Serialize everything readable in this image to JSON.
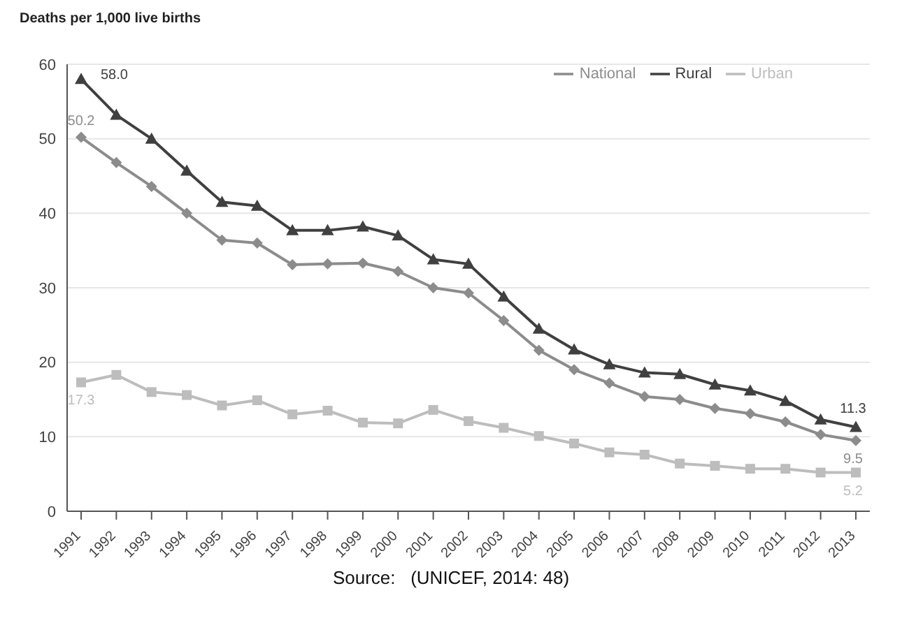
{
  "chart_data": {
    "type": "line",
    "ylabel": "Deaths per 1,000 live births",
    "categories": [
      "1991",
      "1992",
      "1993",
      "1994",
      "1995",
      "1996",
      "1997",
      "1998",
      "1999",
      "2000",
      "2001",
      "2002",
      "2003",
      "2004",
      "2005",
      "2006",
      "2007",
      "2008",
      "2009",
      "2010",
      "2011",
      "2012",
      "2013"
    ],
    "series": [
      {
        "name": "National",
        "color": "#8c8c8c",
        "marker": "diamond",
        "values": [
          50.2,
          46.8,
          43.6,
          40.0,
          36.4,
          36.0,
          33.1,
          33.2,
          33.3,
          32.2,
          30.0,
          29.3,
          25.6,
          21.6,
          19.0,
          17.2,
          15.4,
          15.0,
          13.8,
          13.1,
          12.0,
          10.3,
          9.5
        ],
        "value_labels": [
          "50.2",
          null,
          null,
          null,
          null,
          null,
          null,
          null,
          null,
          null,
          null,
          null,
          null,
          null,
          null,
          null,
          null,
          null,
          null,
          null,
          null,
          null,
          "9.5"
        ]
      },
      {
        "name": "Urban",
        "color": "#bdbdbd",
        "marker": "square",
        "values": [
          17.3,
          18.3,
          16.0,
          15.6,
          14.2,
          14.9,
          13.0,
          13.5,
          11.9,
          11.8,
          13.6,
          12.1,
          11.2,
          10.1,
          9.1,
          7.9,
          7.6,
          6.4,
          6.1,
          5.7,
          5.7,
          5.2,
          5.2
        ],
        "value_labels": [
          "17.3",
          null,
          null,
          null,
          null,
          null,
          null,
          null,
          null,
          null,
          null,
          null,
          null,
          null,
          null,
          null,
          null,
          null,
          null,
          null,
          null,
          null,
          "5.2"
        ]
      },
      {
        "name": "Rural",
        "color": "#404040",
        "marker": "triangle",
        "values": [
          58.0,
          53.2,
          50.0,
          45.7,
          41.5,
          41.0,
          37.7,
          37.7,
          38.2,
          37.0,
          33.8,
          33.2,
          28.8,
          24.5,
          21.7,
          19.7,
          18.6,
          18.4,
          17.0,
          16.2,
          14.8,
          12.3,
          11.3
        ],
        "value_labels": [
          "58.0",
          null,
          null,
          null,
          null,
          null,
          null,
          null,
          null,
          null,
          null,
          null,
          null,
          null,
          null,
          null,
          null,
          null,
          null,
          null,
          null,
          null,
          "11.3"
        ]
      }
    ],
    "ylim": [
      0,
      60
    ],
    "yticks": [
      0,
      10,
      20,
      30,
      40,
      50,
      60
    ],
    "grid": "y",
    "legend": "top right",
    "annotations": [
      "Source:   (UNICEF, 2014: 48)"
    ]
  }
}
